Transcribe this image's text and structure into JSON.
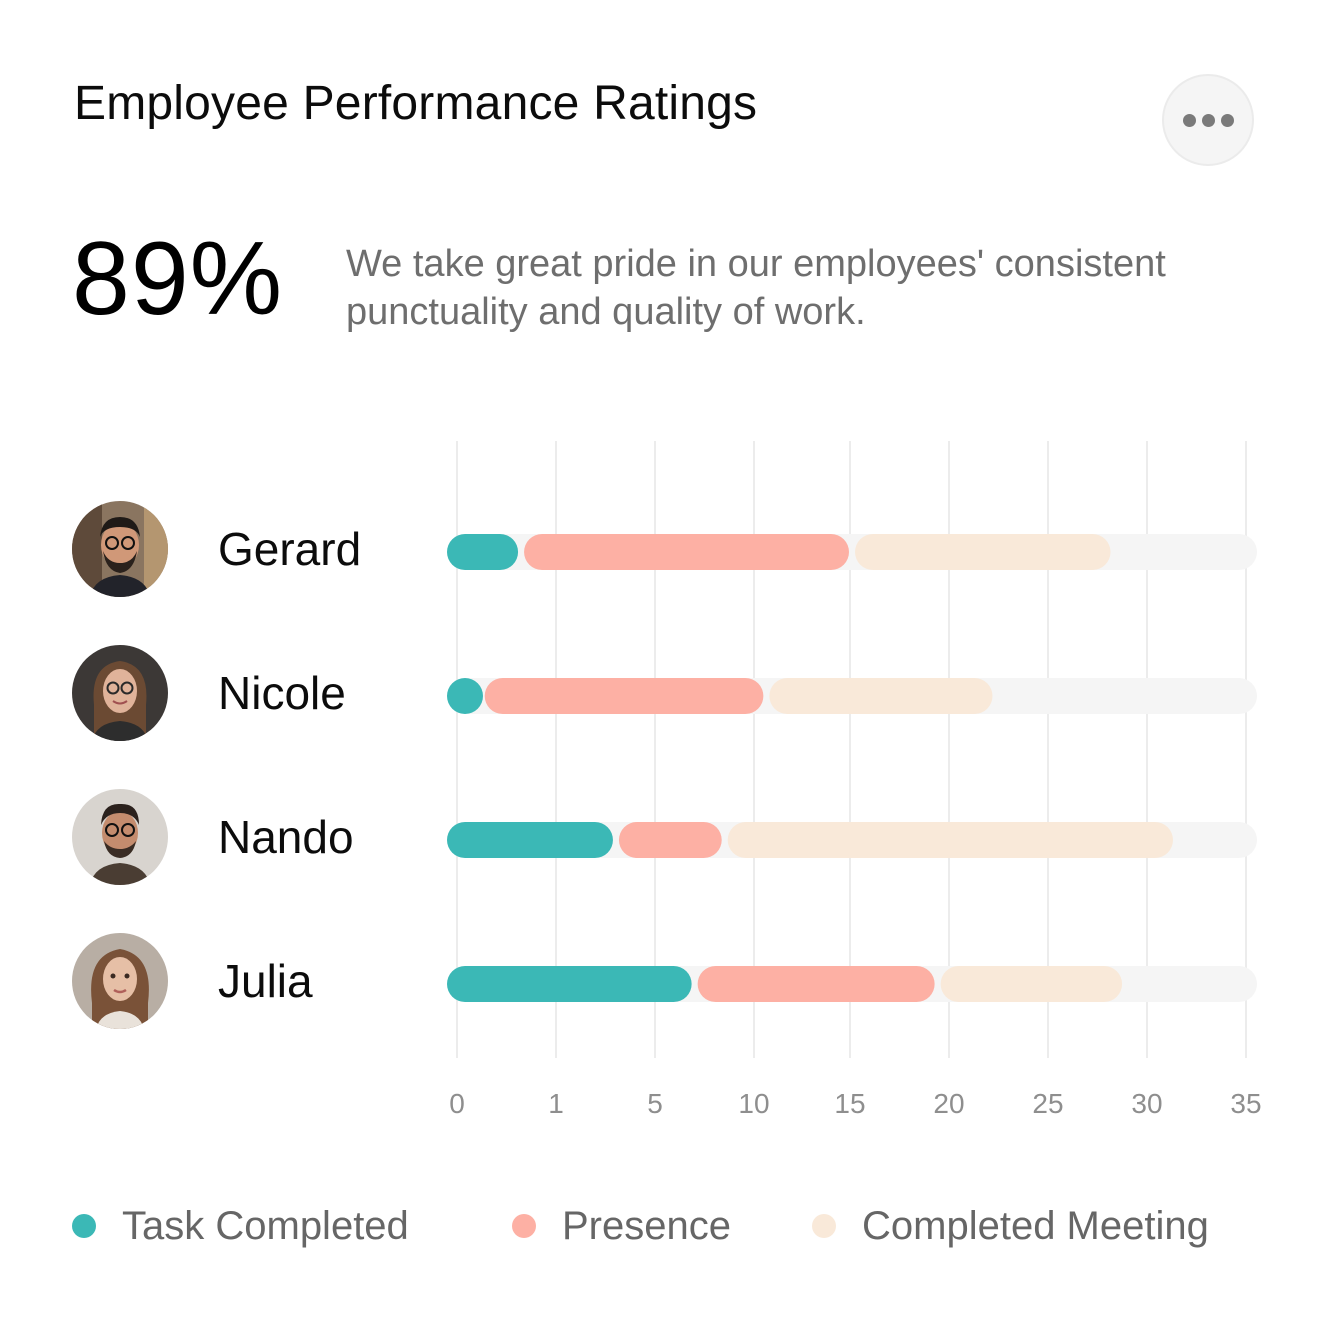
{
  "header": {
    "title": "Employee Performance Ratings",
    "more_icon": "more-horizontal-icon"
  },
  "summary": {
    "value": "89%",
    "description": "We take great pride in our employees' consistent punctuality and quality of work."
  },
  "employees": [
    {
      "name": "Gerard"
    },
    {
      "name": "Nicole"
    },
    {
      "name": "Nando"
    },
    {
      "name": "Julia"
    }
  ],
  "legend": [
    {
      "label": "Task Completed",
      "color": "#3bb8b6"
    },
    {
      "label": "Presence",
      "color": "#fdb0a4"
    },
    {
      "label": "Completed Meeting",
      "color": "#f9e9d9"
    }
  ],
  "chart_data": {
    "type": "bar",
    "orientation": "horizontal",
    "stacked": true,
    "categories": [
      "Gerard",
      "Nicole",
      "Nando",
      "Julia"
    ],
    "x_ticks": [
      0,
      1,
      5,
      10,
      15,
      20,
      25,
      30,
      35
    ],
    "xlim": [
      0,
      35
    ],
    "track_color": "#f5f5f5",
    "grid": true,
    "legend_position": "bottom",
    "series": [
      {
        "name": "Task Completed",
        "color": "#3bb8b6",
        "values": [
          3.2,
          1.5,
          7.3,
          10.7
        ]
      },
      {
        "name": "Presence",
        "color": "#fdb0a4",
        "values": [
          14.3,
          12.3,
          4.7,
          10.5
        ]
      },
      {
        "name": "Completed Meeting",
        "color": "#f9e9d9",
        "values": [
          11.3,
          9.9,
          19.5,
          8.1
        ]
      }
    ]
  }
}
